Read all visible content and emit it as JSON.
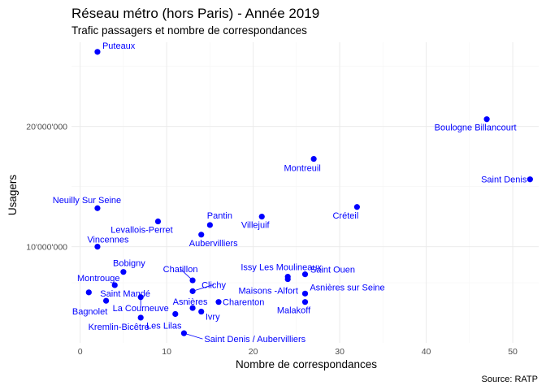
{
  "chart_data": {
    "type": "scatter",
    "title": "Réseau métro (hors Paris) - Année 2019",
    "subtitle": "Trafic passagers et nombre de correspondances",
    "xlabel": "Nombre de correspondances",
    "ylabel": "Usagers",
    "caption": "Source: RATP",
    "xlim": [
      -1,
      53
    ],
    "ylim": [
      2000000,
      27000000
    ],
    "x_ticks": [
      0,
      10,
      20,
      30,
      40,
      50
    ],
    "x_tick_labels": [
      "0",
      "10",
      "20",
      "30",
      "40",
      "50"
    ],
    "y_ticks": [
      10000000,
      20000000
    ],
    "y_tick_labels": [
      "10'000'000",
      "20'000'000"
    ],
    "grid": true,
    "point_color": "#0000ff",
    "label_color": "#0000ff",
    "points": [
      {
        "label": "Puteaux",
        "x": 2,
        "y": 26200000
      },
      {
        "label": "Boulogne Billancourt",
        "x": 47,
        "y": 20600000
      },
      {
        "label": "Montreuil",
        "x": 27,
        "y": 17300000
      },
      {
        "label": "Saint Denis",
        "x": 52,
        "y": 15600000
      },
      {
        "label": "Neuilly Sur Seine",
        "x": 2,
        "y": 13200000
      },
      {
        "label": "Créteil",
        "x": 32,
        "y": 13300000
      },
      {
        "label": "Villejuif",
        "x": 21,
        "y": 12500000
      },
      {
        "label": "Levallois-Perret",
        "x": 9,
        "y": 12100000
      },
      {
        "label": "Pantin",
        "x": 15,
        "y": 11800000
      },
      {
        "label": "Aubervilliers",
        "x": 14,
        "y": 11000000
      },
      {
        "label": "Vincennes",
        "x": 2,
        "y": 10000000
      },
      {
        "label": "Bobigny",
        "x": 5,
        "y": 7900000
      },
      {
        "label": "Montrouge",
        "x": 4,
        "y": 6800000
      },
      {
        "label": "Saint Mandé",
        "x": 1,
        "y": 6200000
      },
      {
        "label": "Bagnolet",
        "x": 3,
        "y": 5500000
      },
      {
        "label": "La Courneuve",
        "x": 7,
        "y": 5800000
      },
      {
        "label": "Chatillon",
        "x": 13,
        "y": 7200000
      },
      {
        "label": "Clichy",
        "x": 13,
        "y": 6300000
      },
      {
        "label": "Asnières",
        "x": 13,
        "y": 4900000
      },
      {
        "label": "Charenton",
        "x": 16,
        "y": 5400000
      },
      {
        "label": "Ivry",
        "x": 14,
        "y": 4600000
      },
      {
        "label": "Les Lilas",
        "x": 11,
        "y": 4400000
      },
      {
        "label": "Kremlin-Bicêtre",
        "x": 7,
        "y": 4100000
      },
      {
        "label": "Saint Denis / Aubervilliers",
        "x": 12,
        "y": 2800000
      },
      {
        "label": "Issy Les Moulineaux",
        "x": 24,
        "y": 7500000
      },
      {
        "label": "Maisons -Alfort",
        "x": 24,
        "y": 7300000
      },
      {
        "label": "Saint Ouen",
        "x": 26,
        "y": 7700000
      },
      {
        "label": "Asnières sur Seine",
        "x": 26,
        "y": 6100000
      },
      {
        "label": "Malakoff",
        "x": 26,
        "y": 5400000
      }
    ]
  }
}
